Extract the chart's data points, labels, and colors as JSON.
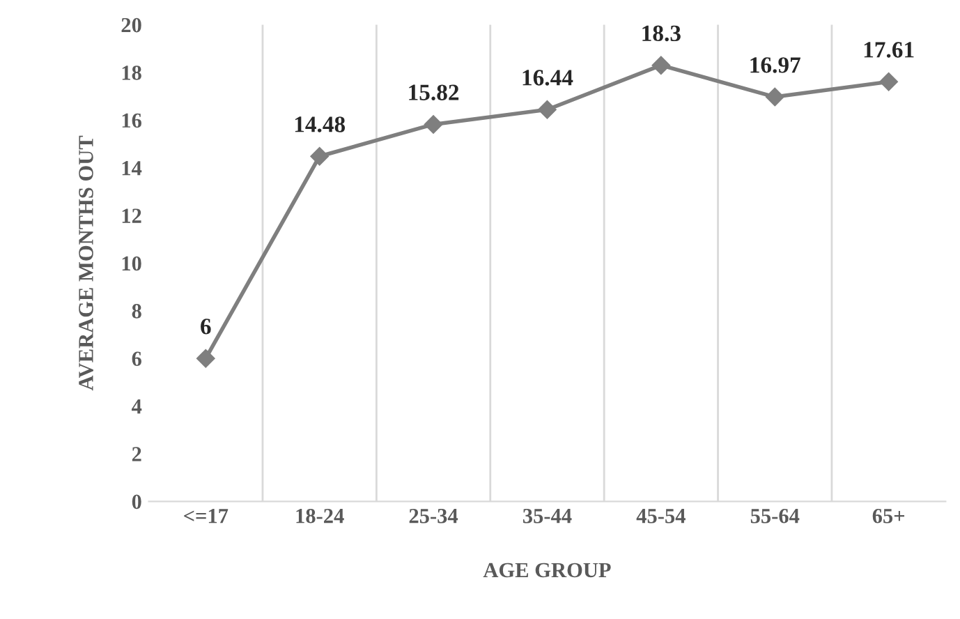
{
  "chart_data": {
    "type": "line",
    "xlabel": "AGE GROUP",
    "ylabel": "AVERAGE MONTHS OUT",
    "categories": [
      "<=17",
      "18-24",
      "25-34",
      "35-44",
      "45-54",
      "55-64",
      "65+"
    ],
    "series": [
      {
        "color": "#7f7f7f",
        "values": [
          6,
          14.48,
          15.82,
          16.44,
          18.3,
          16.97,
          17.61
        ]
      }
    ],
    "ylim": [
      0,
      20
    ],
    "yticks": [
      0,
      2,
      4,
      6,
      8,
      10,
      12,
      14,
      16,
      18,
      20
    ],
    "grid": "x",
    "marker": "diamond",
    "line_style": "solid",
    "data_labels": true,
    "legend": false
  }
}
